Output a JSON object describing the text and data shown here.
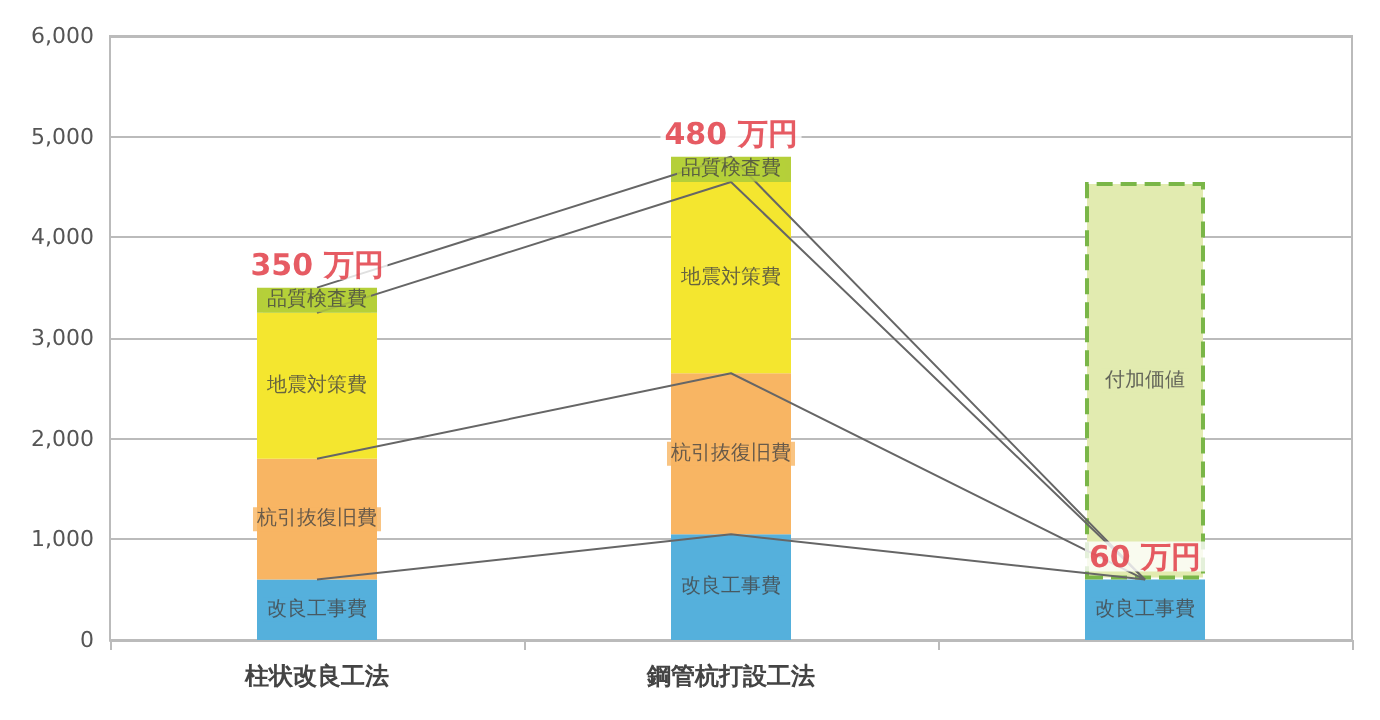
{
  "chart_data": {
    "type": "bar",
    "stacked": true,
    "categories": [
      "柱状改良工法",
      "鋼管杭打設工法",
      null
    ],
    "ylim": [
      0,
      6000
    ],
    "yticks": [
      0,
      {
        "value": 1000,
        "label": "1,000"
      },
      {
        "value": 2000,
        "label": "2,000"
      },
      {
        "value": 3000,
        "label": "3,000"
      },
      {
        "value": 4000,
        "label": "4,000"
      },
      {
        "value": 5000,
        "label": "5,000"
      },
      {
        "value": 6000,
        "label": "6,000"
      }
    ],
    "grid": "y",
    "legend": false,
    "annotations": [
      {
        "text": "350 万円",
        "x": "柱状改良工法",
        "y": 3500
      },
      {
        "text": "480 万円",
        "x": "鋼管杭打設工法",
        "y": 4800
      },
      {
        "text": "60 万円",
        "y": 600
      }
    ],
    "series": [
      {
        "name": "改良工事費",
        "color": "#55b0dc",
        "values": [
          600,
          1050,
          600
        ]
      },
      {
        "name": "杭引抜復旧費",
        "color": "#f8b563",
        "values": [
          1200,
          1600,
          null
        ]
      },
      {
        "name": "地震対策費",
        "color": "#f4e62f",
        "values": [
          1450,
          1900,
          null
        ]
      },
      {
        "name": "品質検査費",
        "color": "#b5cf3a",
        "values": [
          250,
          250,
          null
        ]
      },
      {
        "name": "付加価値",
        "color": "#e2ebb0",
        "line_style": "dashed",
        "values": [
          null,
          null,
          3950
        ]
      },
      {
        "type": "line",
        "color": "#666666",
        "values": [
          600,
          1050,
          600
        ]
      },
      {
        "type": "line",
        "color": "#666666",
        "values": [
          1800,
          2650,
          600
        ]
      },
      {
        "type": "line",
        "color": "#666666",
        "values": [
          3250,
          4550,
          600
        ]
      },
      {
        "type": "line",
        "color": "#666666",
        "values": [
          3500,
          4800,
          600
        ]
      }
    ]
  }
}
